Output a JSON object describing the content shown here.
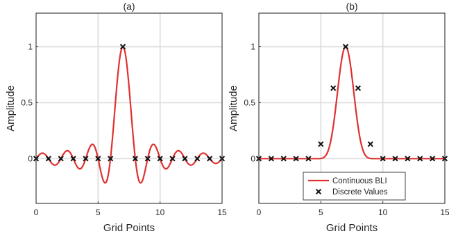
{
  "chart_data": [
    {
      "type": "line",
      "title": "(a)",
      "xlabel": "Grid Points",
      "ylabel": "Amplitude",
      "xlim": [
        0,
        15
      ],
      "ylim": [
        -0.4,
        1.3
      ],
      "xticks": [
        "0",
        "5",
        "10",
        "15"
      ],
      "yticks": [
        "0",
        "0.5",
        "1"
      ],
      "grid": true,
      "series": [
        {
          "kind": "curve",
          "shape": "sinc",
          "center": 7,
          "width": 1,
          "color": "#e03030"
        },
        {
          "kind": "markers",
          "marker": "x",
          "color": "#111111",
          "x": [
            0,
            1,
            2,
            3,
            4,
            5,
            6,
            7,
            8,
            9,
            10,
            11,
            12,
            13,
            14,
            15
          ],
          "y": [
            0,
            0,
            0,
            0,
            0,
            0,
            0,
            1,
            0,
            0,
            0,
            0,
            0,
            0,
            0,
            0
          ]
        }
      ]
    },
    {
      "type": "line",
      "title": "(b)",
      "xlabel": "Grid Points",
      "ylabel": "Amplitude",
      "xlim": [
        0,
        15
      ],
      "ylim": [
        -0.4,
        1.3
      ],
      "xticks": [
        "0",
        "5",
        "10",
        "15"
      ],
      "yticks": [
        "0",
        "0.5",
        "1"
      ],
      "grid": true,
      "legend": "bottom-center",
      "series": [
        {
          "kind": "curve",
          "shape": "blackman-harris",
          "center": 7,
          "halfwidth": 2.2,
          "name": "Continuous BLI",
          "color": "#e03030"
        },
        {
          "kind": "markers",
          "marker": "x",
          "name": "Discrete Values",
          "color": "#111111",
          "x": [
            0,
            1,
            2,
            3,
            4,
            5,
            6,
            7,
            8,
            9,
            10,
            11,
            12,
            13,
            14,
            15
          ],
          "y": [
            0,
            0,
            0,
            0,
            0,
            0.13,
            0.63,
            1,
            0.63,
            0.13,
            0,
            0,
            0,
            0,
            0,
            0
          ]
        }
      ]
    }
  ]
}
